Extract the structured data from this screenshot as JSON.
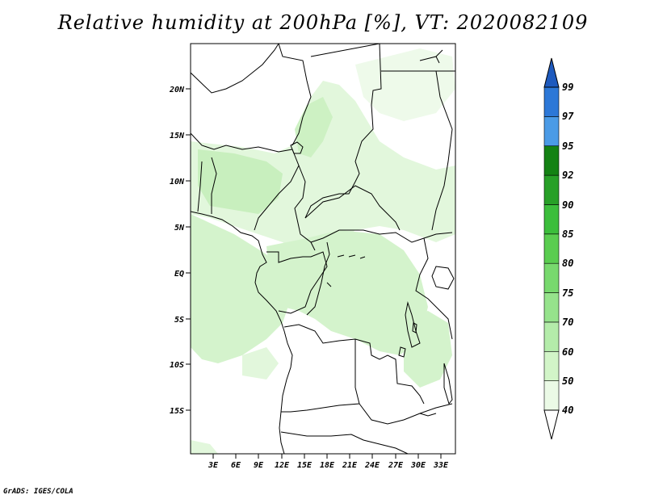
{
  "title": "Relative humidity at 200hPa [%], VT: 2020082109",
  "credit": "GrADS: IGES/COLA",
  "map": {
    "lat_labels": [
      "20N",
      "15N",
      "10N",
      "5N",
      "EQ",
      "5S",
      "10S",
      "15S"
    ],
    "lon_labels": [
      "3E",
      "6E",
      "9E",
      "12E",
      "15E",
      "18E",
      "21E",
      "24E",
      "27E",
      "30E",
      "33E"
    ]
  },
  "colorbar": {
    "labels": [
      "40",
      "50",
      "60",
      "70",
      "75",
      "80",
      "85",
      "90",
      "92",
      "95",
      "97",
      "99"
    ],
    "colors": [
      "#ebfae6",
      "#d2f5c8",
      "#b4ecaa",
      "#96e38c",
      "#78d96e",
      "#5acd50",
      "#3cbe3c",
      "#28a028",
      "#148214",
      "#4b9be6",
      "#2d78d7",
      "#1e5abe"
    ]
  },
  "palette": {
    "land_outline": "#000000",
    "humid_light": "#e2f7dc",
    "humid_mid": "#c8efbe"
  }
}
